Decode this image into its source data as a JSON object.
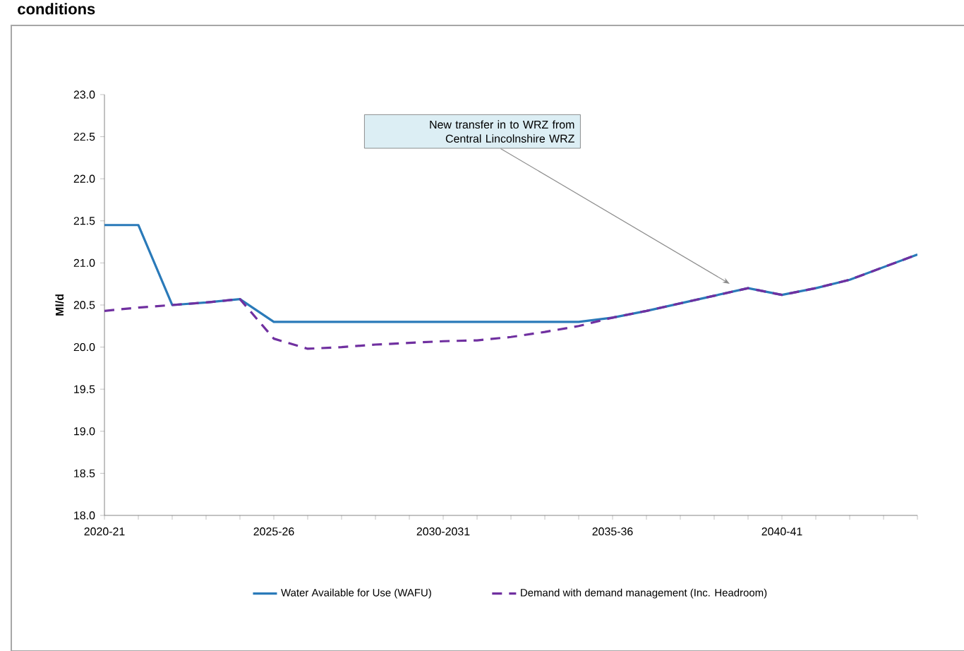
{
  "chart_data": {
    "type": "line",
    "title": "conditions",
    "ylabel": "Ml/d",
    "categories": [
      "2020-21",
      null,
      null,
      null,
      null,
      "2025-26",
      null,
      null,
      null,
      null,
      "2030-2031",
      null,
      null,
      null,
      null,
      "2035-36",
      null,
      null,
      null,
      null,
      "2040-41",
      null,
      null,
      null,
      null
    ],
    "series": [
      {
        "name": "Water Available for Use (WAFU)",
        "color": "#2a7ab9",
        "line_style": "solid",
        "values": [
          21.45,
          21.45,
          20.5,
          20.53,
          20.57,
          20.3,
          20.3,
          20.3,
          20.3,
          20.3,
          20.3,
          20.3,
          20.3,
          20.3,
          20.3,
          20.35,
          20.43,
          20.52,
          20.61,
          20.7,
          20.62,
          20.7,
          20.8,
          20.95,
          21.1
        ]
      },
      {
        "name": "Demand with demand management (Inc. Headroom)",
        "color": "#7030a0",
        "line_style": "dashed",
        "values": [
          20.43,
          20.47,
          20.5,
          20.53,
          20.57,
          20.1,
          19.98,
          20.0,
          20.03,
          20.05,
          20.07,
          20.08,
          20.12,
          20.18,
          20.25,
          20.35,
          20.43,
          20.52,
          20.61,
          20.7,
          20.62,
          20.7,
          20.8,
          20.95,
          21.1
        ]
      }
    ],
    "ylim": [
      18,
      23
    ],
    "yticks": [
      {
        "value": 18,
        "label": "18.0"
      },
      {
        "value": 18.5,
        "label": "18.5"
      },
      {
        "value": 19,
        "label": "19.0"
      },
      {
        "value": 19.5,
        "label": "19.5"
      },
      {
        "value": 20,
        "label": "20.0"
      },
      {
        "value": 20.5,
        "label": "20.5"
      },
      {
        "value": 21,
        "label": "21.0"
      },
      {
        "value": 21.5,
        "label": "21.5"
      },
      {
        "value": 22,
        "label": "22.0"
      },
      {
        "value": 22.5,
        "label": "22.5"
      },
      {
        "value": 23,
        "label": "23.0"
      }
    ],
    "annotations": [
      "New transfer in to WRZ from Central Lincolnshire WRZ"
    ],
    "legend": "bottom",
    "grid": false,
    "marker": "none"
  }
}
